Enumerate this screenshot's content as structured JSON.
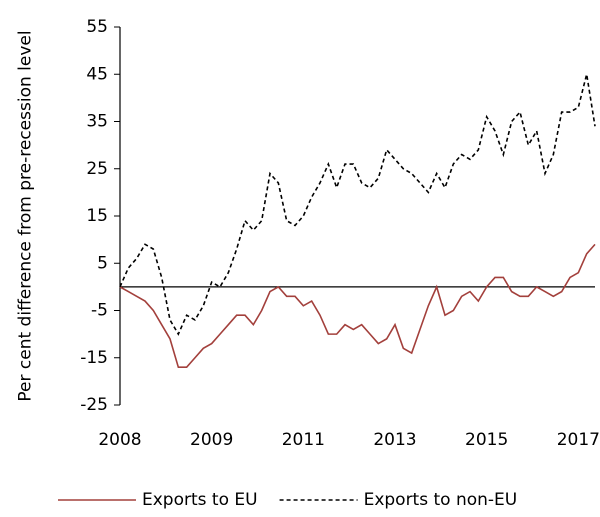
{
  "chart_data": {
    "type": "line",
    "y_label": "Per cent difference from pre-recession level",
    "categories": [
      "2008",
      null,
      null,
      null,
      null,
      null,
      null,
      null,
      null,
      null,
      null,
      "2009",
      null,
      null,
      null,
      null,
      null,
      null,
      null,
      null,
      null,
      null,
      "2011",
      null,
      null,
      null,
      null,
      null,
      null,
      null,
      null,
      null,
      null,
      "2013",
      null,
      null,
      null,
      null,
      null,
      null,
      null,
      null,
      null,
      null,
      "2015",
      null,
      null,
      null,
      null,
      null,
      null,
      null,
      null,
      null,
      null,
      "2017",
      null,
      null
    ],
    "series": [
      {
        "name": "Exports to EU",
        "color": "#a3403c",
        "dash": false,
        "values": [
          0,
          -1,
          -2,
          -3,
          -5,
          -8,
          -11,
          -17,
          -17,
          -15,
          -13,
          -12,
          -10,
          -8,
          -6,
          -6,
          -8,
          -5,
          -1,
          0,
          -2,
          -2,
          -4,
          -3,
          -6,
          -10,
          -10,
          -8,
          -9,
          -8,
          -10,
          -12,
          -11,
          -8,
          -13,
          -14,
          -9,
          -4,
          0,
          -6,
          -5,
          -2,
          -1,
          -3,
          0,
          2,
          2,
          -1,
          -2,
          -2,
          0,
          -1,
          -2,
          -1,
          2,
          3,
          7,
          9
        ]
      },
      {
        "name": "Exports to non-EU",
        "color": "#000000",
        "dash": true,
        "values": [
          0,
          4,
          6,
          9,
          8,
          2,
          -7,
          -10,
          -6,
          -7,
          -4,
          1,
          0,
          3,
          8,
          14,
          12,
          14,
          24,
          22,
          14,
          13,
          15,
          19,
          22,
          26,
          21,
          26,
          26,
          22,
          21,
          23,
          29,
          27,
          25,
          24,
          22,
          20,
          24,
          21,
          26,
          28,
          27,
          29,
          36,
          33,
          28,
          35,
          37,
          30,
          33,
          24,
          28,
          37,
          37,
          38,
          45,
          34
        ]
      }
    ],
    "ylim": [
      -25,
      55
    ],
    "yticks": [
      -25,
      -15,
      -5,
      5,
      15,
      25,
      35,
      45,
      55
    ],
    "legend": "bottom"
  }
}
